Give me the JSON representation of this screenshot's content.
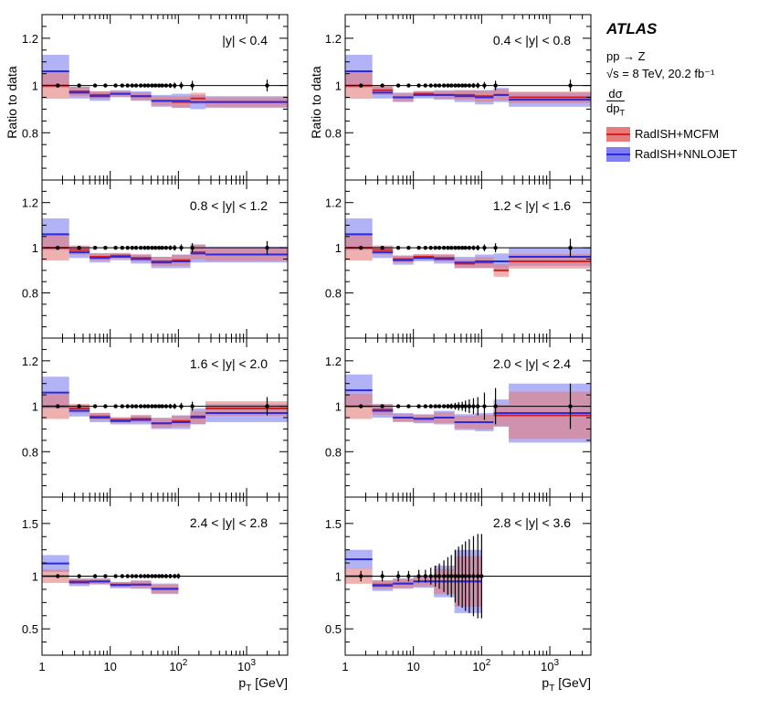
{
  "legend": {
    "experiment": "ATLAS",
    "process": "pp → Z",
    "energy": "√s = 8 TeV, 20.2 fb⁻¹",
    "obs_num": "dσ",
    "obs_den": "dp",
    "obs_den_sub": "T",
    "entries": [
      {
        "label": "RadISH+MCFM",
        "band_color": "#e57b7b",
        "line_color": "#d62020"
      },
      {
        "label": "RadISH+NNLOJET",
        "band_color": "#7f7ff0",
        "line_color": "#2a2ae0"
      }
    ]
  },
  "axes": {
    "ylabel": "Ratio to data",
    "xlabel": "p",
    "xlabel_sub": "T",
    "xlabel_unit": "[GeV]",
    "x_tick_labels": [
      "1",
      "10",
      "10",
      "10"
    ],
    "x_tick_sups": [
      "",
      "",
      "2",
      "3"
    ]
  },
  "colors": {
    "mcfm_band": "#e57b7b",
    "mcfm_line": "#d62020",
    "nnlo_band": "#7f7ff0",
    "nnlo_line": "#2a2ae0",
    "overlap": "#8a52a8",
    "data": "#000000"
  },
  "chart_data": [
    {
      "type": "line",
      "title": "|y| < 0.4",
      "ylim": [
        0.6,
        1.3
      ],
      "yticks": [
        0.8,
        1.0,
        1.2
      ],
      "ytick_labels": [
        "0.8",
        "1",
        "1.2"
      ],
      "xlim": [
        1,
        4000
      ],
      "bins": [
        [
          1,
          2.5,
          1.0,
          1.06,
          0.07
        ],
        [
          2.5,
          5,
          0.975,
          0.97,
          0.025
        ],
        [
          5,
          10,
          0.96,
          0.955,
          0.02
        ],
        [
          10,
          20,
          0.965,
          0.965,
          0.015
        ],
        [
          20,
          40,
          0.955,
          0.955,
          0.02
        ],
        [
          40,
          80,
          0.935,
          0.935,
          0.025
        ],
        [
          80,
          150,
          0.93,
          0.935,
          0.03
        ],
        [
          150,
          250,
          0.945,
          0.93,
          0.03
        ],
        [
          250,
          4000,
          0.93,
          0.93,
          0.025
        ]
      ],
      "data_x": [
        1.7,
        3.5,
        6,
        8.5,
        12,
        15,
        18,
        21,
        24,
        28,
        32,
        36,
        41,
        46,
        52,
        58,
        66,
        76,
        88,
        110,
        160,
        2000
      ],
      "data_err": [
        0.005,
        0.005,
        0.005,
        0.005,
        0.005,
        0.005,
        0.005,
        0.005,
        0.005,
        0.005,
        0.005,
        0.005,
        0.005,
        0.006,
        0.006,
        0.007,
        0.008,
        0.01,
        0.012,
        0.015,
        0.02,
        0.025
      ]
    },
    {
      "type": "line",
      "title": "0.4 < |y| < 0.8",
      "ylim": [
        0.6,
        1.3
      ],
      "yticks": [
        0.8,
        1.0,
        1.2
      ],
      "ytick_labels": [
        "0.8",
        "1",
        "1.2"
      ],
      "xlim": [
        1,
        4000
      ],
      "bins": [
        [
          1,
          2.5,
          1.0,
          1.06,
          0.07
        ],
        [
          2.5,
          5,
          0.98,
          0.97,
          0.025
        ],
        [
          5,
          10,
          0.95,
          0.95,
          0.02
        ],
        [
          10,
          20,
          0.965,
          0.96,
          0.015
        ],
        [
          20,
          40,
          0.96,
          0.96,
          0.02
        ],
        [
          40,
          80,
          0.96,
          0.955,
          0.025
        ],
        [
          80,
          150,
          0.955,
          0.95,
          0.03
        ],
        [
          150,
          250,
          0.96,
          0.96,
          0.03
        ],
        [
          250,
          4000,
          0.95,
          0.94,
          0.03
        ]
      ],
      "data_x": [
        1.7,
        3.5,
        6,
        8.5,
        12,
        15,
        18,
        21,
        24,
        28,
        32,
        36,
        41,
        46,
        52,
        58,
        66,
        76,
        88,
        110,
        160,
        2000
      ],
      "data_err": [
        0.005,
        0.005,
        0.005,
        0.005,
        0.005,
        0.005,
        0.005,
        0.005,
        0.005,
        0.005,
        0.005,
        0.005,
        0.005,
        0.006,
        0.006,
        0.007,
        0.008,
        0.01,
        0.012,
        0.015,
        0.02,
        0.025
      ]
    },
    {
      "type": "line",
      "title": "0.8 < |y| < 1.2",
      "ylim": [
        0.6,
        1.3
      ],
      "yticks": [
        0.8,
        1.0,
        1.2
      ],
      "ytick_labels": [
        "0.8",
        "1",
        "1.2"
      ],
      "xlim": [
        1,
        4000
      ],
      "bins": [
        [
          1,
          2.5,
          1.0,
          1.06,
          0.07
        ],
        [
          2.5,
          5,
          0.99,
          0.98,
          0.025
        ],
        [
          5,
          10,
          0.96,
          0.955,
          0.02
        ],
        [
          10,
          20,
          0.965,
          0.96,
          0.015
        ],
        [
          20,
          40,
          0.955,
          0.95,
          0.02
        ],
        [
          40,
          80,
          0.94,
          0.935,
          0.025
        ],
        [
          80,
          150,
          0.945,
          0.94,
          0.03
        ],
        [
          150,
          250,
          0.98,
          0.975,
          0.04
        ],
        [
          250,
          4000,
          0.97,
          0.97,
          0.035
        ]
      ],
      "data_x": [
        1.7,
        3.5,
        6,
        8.5,
        12,
        15,
        18,
        21,
        24,
        28,
        32,
        36,
        41,
        46,
        52,
        58,
        66,
        76,
        88,
        110,
        160,
        2000
      ],
      "data_err": [
        0.005,
        0.005,
        0.005,
        0.005,
        0.005,
        0.005,
        0.005,
        0.005,
        0.005,
        0.005,
        0.005,
        0.005,
        0.005,
        0.006,
        0.006,
        0.007,
        0.008,
        0.01,
        0.012,
        0.015,
        0.02,
        0.03
      ]
    },
    {
      "type": "line",
      "title": "1.2 < |y| < 1.6",
      "ylim": [
        0.6,
        1.3
      ],
      "yticks": [
        0.8,
        1.0,
        1.2
      ],
      "ytick_labels": [
        "0.8",
        "1",
        "1.2"
      ],
      "xlim": [
        1,
        4000
      ],
      "bins": [
        [
          1,
          2.5,
          1.0,
          1.06,
          0.07
        ],
        [
          2.5,
          5,
          0.99,
          0.98,
          0.025
        ],
        [
          5,
          10,
          0.95,
          0.945,
          0.02
        ],
        [
          10,
          20,
          0.96,
          0.955,
          0.015
        ],
        [
          20,
          40,
          0.955,
          0.95,
          0.02
        ],
        [
          40,
          80,
          0.93,
          0.935,
          0.025
        ],
        [
          80,
          150,
          0.935,
          0.94,
          0.03
        ],
        [
          150,
          250,
          0.9,
          0.94,
          0.035
        ],
        [
          250,
          4000,
          0.94,
          0.96,
          0.04
        ]
      ],
      "data_x": [
        1.7,
        3.5,
        6,
        8.5,
        12,
        15,
        18,
        21,
        24,
        28,
        32,
        36,
        41,
        46,
        52,
        58,
        66,
        76,
        88,
        110,
        160,
        2000
      ],
      "data_err": [
        0.005,
        0.005,
        0.005,
        0.005,
        0.005,
        0.005,
        0.005,
        0.005,
        0.005,
        0.005,
        0.005,
        0.005,
        0.005,
        0.006,
        0.006,
        0.007,
        0.008,
        0.01,
        0.012,
        0.015,
        0.02,
        0.04
      ]
    },
    {
      "type": "line",
      "title": "1.6 < |y| < 2.0",
      "ylim": [
        0.6,
        1.3
      ],
      "yticks": [
        0.8,
        1.0,
        1.2
      ],
      "ytick_labels": [
        "0.8",
        "1",
        "1.2"
      ],
      "xlim": [
        1,
        4000
      ],
      "bins": [
        [
          1,
          2.5,
          1.0,
          1.06,
          0.07
        ],
        [
          2.5,
          5,
          0.99,
          0.98,
          0.025
        ],
        [
          5,
          10,
          0.955,
          0.95,
          0.02
        ],
        [
          10,
          20,
          0.94,
          0.935,
          0.015
        ],
        [
          20,
          40,
          0.945,
          0.94,
          0.02
        ],
        [
          40,
          80,
          0.925,
          0.925,
          0.025
        ],
        [
          80,
          150,
          0.935,
          0.93,
          0.03
        ],
        [
          150,
          250,
          0.95,
          0.955,
          0.035
        ],
        [
          250,
          4000,
          0.99,
          0.97,
          0.04
        ]
      ],
      "data_x": [
        1.7,
        3.5,
        6,
        8.5,
        12,
        15,
        18,
        21,
        24,
        28,
        32,
        36,
        41,
        46,
        52,
        58,
        66,
        76,
        88,
        110,
        160,
        2000
      ],
      "data_err": [
        0.005,
        0.005,
        0.005,
        0.005,
        0.005,
        0.005,
        0.005,
        0.005,
        0.005,
        0.005,
        0.005,
        0.005,
        0.005,
        0.006,
        0.006,
        0.007,
        0.008,
        0.01,
        0.012,
        0.015,
        0.02,
        0.04
      ]
    },
    {
      "type": "line",
      "title": "2.0 < |y| < 2.4",
      "ylim": [
        0.6,
        1.3
      ],
      "yticks": [
        0.8,
        1.0,
        1.2
      ],
      "ytick_labels": [
        "0.8",
        "1",
        "1.2"
      ],
      "xlim": [
        1,
        4000
      ],
      "bins": [
        [
          1,
          2.5,
          1.0,
          1.07,
          0.07
        ],
        [
          2.5,
          5,
          0.985,
          0.98,
          0.03
        ],
        [
          5,
          10,
          0.95,
          0.95,
          0.02
        ],
        [
          10,
          20,
          0.945,
          0.945,
          0.02
        ],
        [
          20,
          40,
          0.95,
          0.95,
          0.03
        ],
        [
          40,
          80,
          0.93,
          0.93,
          0.035
        ],
        [
          80,
          150,
          0.93,
          0.93,
          0.04
        ],
        [
          150,
          250,
          0.96,
          0.97,
          0.06
        ],
        [
          250,
          4000,
          0.96,
          0.97,
          0.13
        ]
      ],
      "data_x": [
        1.7,
        3.5,
        6,
        8.5,
        12,
        15,
        18,
        21,
        24,
        28,
        32,
        36,
        41,
        46,
        52,
        58,
        66,
        76,
        88,
        110,
        160,
        2000
      ],
      "data_err": [
        0.005,
        0.005,
        0.005,
        0.005,
        0.005,
        0.005,
        0.006,
        0.006,
        0.007,
        0.008,
        0.01,
        0.012,
        0.015,
        0.018,
        0.02,
        0.025,
        0.03,
        0.035,
        0.04,
        0.06,
        0.08,
        0.1
      ]
    },
    {
      "type": "line",
      "title": "2.4 < |y| < 2.8",
      "ylim": [
        0.25,
        1.75
      ],
      "yticks": [
        0.5,
        1.0,
        1.5
      ],
      "ytick_labels": [
        "0.5",
        "1",
        "1.5"
      ],
      "xlim": [
        1,
        4000
      ],
      "bins": [
        [
          1,
          2.5,
          1.0,
          1.12,
          0.08
        ],
        [
          2.5,
          5,
          0.95,
          0.94,
          0.035
        ],
        [
          5,
          10,
          0.95,
          0.95,
          0.03
        ],
        [
          10,
          20,
          0.92,
          0.915,
          0.03
        ],
        [
          20,
          40,
          0.92,
          0.92,
          0.04
        ],
        [
          40,
          100,
          0.88,
          0.88,
          0.05
        ]
      ],
      "data_x": [
        1.7,
        3.5,
        6,
        8.5,
        12,
        15,
        18,
        21,
        24,
        28,
        32,
        36,
        41,
        46,
        52,
        58,
        66,
        76,
        88,
        100
      ],
      "data_err": [
        0.01,
        0.01,
        0.01,
        0.01,
        0.01,
        0.01,
        0.01,
        0.01,
        0.01,
        0.01,
        0.01,
        0.012,
        0.012,
        0.015,
        0.015,
        0.015,
        0.02,
        0.02,
        0.02,
        0.025
      ]
    },
    {
      "type": "line",
      "title": "2.8 < |y| < 3.6",
      "ylim": [
        0.25,
        1.75
      ],
      "yticks": [
        0.5,
        1.0,
        1.5
      ],
      "ytick_labels": [
        "0.5",
        "1",
        "1.5"
      ],
      "xlim": [
        1,
        4000
      ],
      "bins": [
        [
          1,
          2.5,
          1.0,
          1.16,
          0.09
        ],
        [
          2.5,
          5,
          0.92,
          0.91,
          0.05
        ],
        [
          5,
          10,
          0.93,
          0.93,
          0.05
        ],
        [
          10,
          20,
          0.95,
          0.95,
          0.06
        ],
        [
          20,
          40,
          0.95,
          0.95,
          0.15
        ],
        [
          40,
          100,
          0.95,
          0.95,
          0.3
        ]
      ],
      "data_x": [
        1.7,
        3.5,
        6,
        8.5,
        12,
        15,
        18,
        21,
        24,
        28,
        32,
        36,
        41,
        46,
        52,
        58,
        66,
        76,
        88,
        100
      ],
      "data_err": [
        0.05,
        0.05,
        0.05,
        0.05,
        0.06,
        0.06,
        0.08,
        0.1,
        0.12,
        0.15,
        0.18,
        0.2,
        0.25,
        0.28,
        0.3,
        0.33,
        0.35,
        0.38,
        0.4,
        0.4
      ]
    }
  ]
}
